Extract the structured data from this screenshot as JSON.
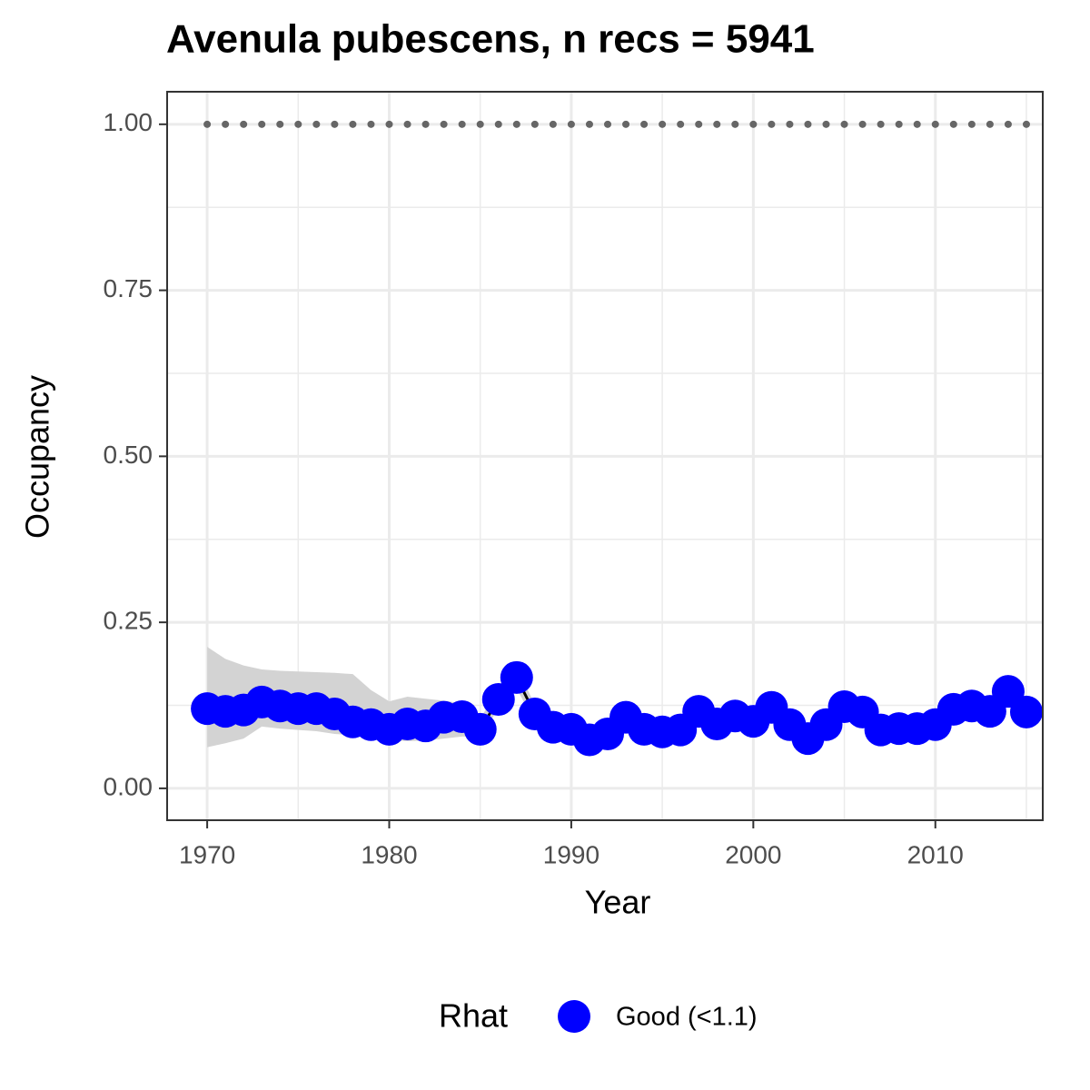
{
  "chart_data": {
    "type": "line",
    "title": "Avenula pubescens, n recs = 5941",
    "x_label": "Year",
    "y_label": "Occupancy",
    "legend_title": "Rhat",
    "legend_position": "bottom",
    "x": [
      1970,
      1971,
      1972,
      1973,
      1974,
      1975,
      1976,
      1977,
      1978,
      1979,
      1980,
      1981,
      1982,
      1983,
      1984,
      1985,
      1986,
      1987,
      1988,
      1989,
      1990,
      1991,
      1992,
      1993,
      1994,
      1995,
      1996,
      1997,
      1998,
      1999,
      2000,
      2001,
      2002,
      2003,
      2004,
      2005,
      2006,
      2007,
      2008,
      2009,
      2010,
      2011,
      2012,
      2013,
      2014,
      2015
    ],
    "series": [
      {
        "name": "Good (<1.1)",
        "color": "#0000ff",
        "line_color": "#000000",
        "values": [
          0.12,
          0.116,
          0.118,
          0.13,
          0.124,
          0.12,
          0.12,
          0.112,
          0.1,
          0.096,
          0.089,
          0.097,
          0.094,
          0.107,
          0.108,
          0.089,
          0.134,
          0.167,
          0.112,
          0.092,
          0.089,
          0.073,
          0.082,
          0.107,
          0.089,
          0.085,
          0.088,
          0.116,
          0.097,
          0.109,
          0.101,
          0.122,
          0.096,
          0.075,
          0.096,
          0.123,
          0.115,
          0.088,
          0.09,
          0.09,
          0.096,
          0.119,
          0.124,
          0.116,
          0.146,
          0.115
        ]
      }
    ],
    "band": {
      "color": "#d3d3d3",
      "lower": [
        0.062,
        0.068,
        0.075,
        0.093,
        0.09,
        0.088,
        0.086,
        0.082,
        0.08,
        0.077,
        0.073,
        0.071,
        0.072,
        0.075,
        0.078,
        0.078,
        0.12,
        0.15,
        0.1,
        0.082,
        0.079,
        0.063,
        0.072,
        0.095,
        0.079,
        0.075,
        0.078,
        0.104,
        0.087,
        0.098,
        0.091,
        0.11,
        0.086,
        0.065,
        0.086,
        0.111,
        0.104,
        0.078,
        0.08,
        0.08,
        0.086,
        0.107,
        0.112,
        0.104,
        0.132,
        0.103
      ],
      "upper": [
        0.213,
        0.195,
        0.185,
        0.179,
        0.177,
        0.176,
        0.175,
        0.174,
        0.172,
        0.148,
        0.131,
        0.138,
        0.135,
        0.132,
        0.128,
        0.105,
        0.15,
        0.185,
        0.125,
        0.102,
        0.099,
        0.083,
        0.092,
        0.119,
        0.099,
        0.095,
        0.098,
        0.128,
        0.107,
        0.12,
        0.111,
        0.134,
        0.106,
        0.085,
        0.106,
        0.135,
        0.126,
        0.098,
        0.1,
        0.1,
        0.106,
        0.131,
        0.136,
        0.128,
        0.16,
        0.127
      ]
    },
    "reference": {
      "color": "#666666",
      "values": [
        1,
        1,
        1,
        1,
        1,
        1,
        1,
        1,
        1,
        1,
        1,
        1,
        1,
        1,
        1,
        1,
        1,
        1,
        1,
        1,
        1,
        1,
        1,
        1,
        1,
        1,
        1,
        1,
        1,
        1,
        1,
        1,
        1,
        1,
        1,
        1,
        1,
        1,
        1,
        1,
        1,
        1,
        1,
        1,
        1,
        1
      ]
    },
    "xlim": [
      1967.8,
      2015.9
    ],
    "ylim": [
      -0.048,
      1.049
    ],
    "xticks": [
      1970,
      1980,
      1990,
      2000,
      2010
    ],
    "minor_xticks": [
      1975,
      1985,
      1995,
      2005,
      2015
    ],
    "yticks": [
      {
        "value": 0,
        "label": "0.00"
      },
      0.25,
      {
        "value": 0.5,
        "label": "0.50"
      },
      0.75,
      {
        "value": 1,
        "label": "1.00"
      }
    ],
    "minor_yticks": [
      0.125,
      0.375,
      0.625,
      0.875
    ],
    "grid": true
  }
}
